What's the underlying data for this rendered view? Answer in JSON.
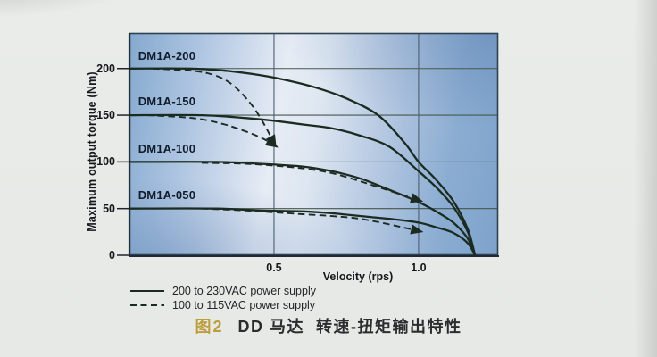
{
  "figure_caption": {
    "number": "图2",
    "number_color": "#bd9e3c",
    "title": "DD 马达  转速-扭矩输出特性"
  },
  "chart_data": {
    "type": "line",
    "title": "图2 DD 马达 转速-扭矩输出特性",
    "xlabel": "Velocity (rps)",
    "ylabel": "Maximum output torque (Nm)",
    "xlim": [
      0,
      1.275
    ],
    "ylim": [
      0,
      238
    ],
    "xticks": [
      "0.5",
      "1.0"
    ],
    "yticks": [
      "200",
      "150",
      "100",
      "50",
      "0"
    ],
    "grid": {
      "on": true,
      "x": [
        0.5,
        1.0
      ],
      "y": [
        50,
        100,
        150,
        200
      ]
    },
    "legend_position": "bottom-left",
    "legend": [
      {
        "style": "solid",
        "label": "200 to 230VAC power supply"
      },
      {
        "style": "dashed",
        "label": "100 to 115VAC power supply"
      }
    ],
    "colors": {
      "grid_h": "#46584d",
      "grid_v": "#4d5e6e",
      "border": "#2f4254",
      "axis": "#1d2933",
      "curve": "#1c2b21",
      "plot_background": [
        "#84a9ce",
        "#e7ecf5",
        "#7da2ca"
      ]
    },
    "curve_labels": [
      {
        "text": "DM1A-200",
        "x": 0.03,
        "y": 212
      },
      {
        "text": "DM1A-150",
        "x": 0.03,
        "y": 163
      },
      {
        "text": "DM1A-100",
        "x": 0.03,
        "y": 113
      },
      {
        "text": "DM1A-050",
        "x": 0.03,
        "y": 63
      }
    ],
    "series": [
      {
        "name": "DM1A-200",
        "power_supply": "200 to 230VAC",
        "line": "solid",
        "arrow_end": false,
        "points": [
          [
            0,
            200
          ],
          [
            0.2,
            200
          ],
          [
            0.32,
            198
          ],
          [
            0.45,
            193
          ],
          [
            0.55,
            187
          ],
          [
            0.65,
            179
          ],
          [
            0.75,
            168
          ],
          [
            0.86,
            150
          ],
          [
            0.95,
            121
          ],
          [
            1.0,
            100
          ],
          [
            1.06,
            81
          ],
          [
            1.12,
            58
          ],
          [
            1.17,
            28
          ],
          [
            1.195,
            0
          ]
        ]
      },
      {
        "name": "DM1A-150",
        "power_supply": "200 to 230VAC",
        "line": "solid",
        "arrow_end": false,
        "points": [
          [
            0,
            150
          ],
          [
            0.25,
            150
          ],
          [
            0.4,
            147
          ],
          [
            0.5,
            144
          ],
          [
            0.6,
            140
          ],
          [
            0.7,
            136
          ],
          [
            0.8,
            128
          ],
          [
            0.9,
            116
          ],
          [
            1.0,
            90
          ],
          [
            1.06,
            73
          ],
          [
            1.12,
            52
          ],
          [
            1.17,
            25
          ],
          [
            1.195,
            0
          ]
        ]
      },
      {
        "name": "DM1A-100",
        "power_supply": "200 to 230VAC",
        "line": "solid",
        "arrow_end": false,
        "points": [
          [
            0,
            100
          ],
          [
            0.3,
            100
          ],
          [
            0.45,
            98
          ],
          [
            0.6,
            95
          ],
          [
            0.7,
            90
          ],
          [
            0.8,
            82
          ],
          [
            0.9,
            70
          ],
          [
            1.0,
            57
          ],
          [
            1.06,
            47
          ],
          [
            1.12,
            35
          ],
          [
            1.17,
            18
          ],
          [
            1.195,
            0
          ]
        ]
      },
      {
        "name": "DM1A-050",
        "power_supply": "200 to 230VAC",
        "line": "solid",
        "arrow_end": false,
        "points": [
          [
            0,
            50
          ],
          [
            0.3,
            50
          ],
          [
            0.45,
            48
          ],
          [
            0.6,
            47
          ],
          [
            0.7,
            45
          ],
          [
            0.8,
            42
          ],
          [
            0.9,
            39
          ],
          [
            1.0,
            35
          ],
          [
            1.06,
            30
          ],
          [
            1.12,
            24
          ],
          [
            1.17,
            13
          ],
          [
            1.195,
            0
          ]
        ]
      },
      {
        "name": "DM1A-200",
        "power_supply": "100 to 115VAC",
        "line": "dashed",
        "arrow_end": true,
        "points": [
          [
            0.08,
            200
          ],
          [
            0.2,
            198
          ],
          [
            0.27,
            195
          ],
          [
            0.33,
            188
          ],
          [
            0.38,
            176
          ],
          [
            0.43,
            158
          ],
          [
            0.47,
            138
          ],
          [
            0.5,
            120
          ]
        ]
      },
      {
        "name": "DM1A-150",
        "power_supply": "100 to 115VAC",
        "line": "dashed",
        "arrow_end": true,
        "points": [
          [
            0.06,
            150
          ],
          [
            0.18,
            148
          ],
          [
            0.26,
            145
          ],
          [
            0.33,
            140
          ],
          [
            0.39,
            134
          ],
          [
            0.44,
            128
          ],
          [
            0.48,
            122
          ],
          [
            0.5,
            118
          ]
        ]
      },
      {
        "name": "DM1A-100",
        "power_supply": "100 to 115VAC",
        "line": "dashed",
        "arrow_end": true,
        "points": [
          [
            0.25,
            99
          ],
          [
            0.4,
            98
          ],
          [
            0.5,
            96
          ],
          [
            0.6,
            93
          ],
          [
            0.7,
            88
          ],
          [
            0.8,
            79
          ],
          [
            0.9,
            69
          ],
          [
            0.97,
            62
          ],
          [
            1.0,
            59
          ]
        ]
      },
      {
        "name": "DM1A-050",
        "power_supply": "100 to 115VAC",
        "line": "dashed",
        "arrow_end": true,
        "points": [
          [
            0.25,
            50
          ],
          [
            0.4,
            48
          ],
          [
            0.5,
            46
          ],
          [
            0.6,
            44
          ],
          [
            0.7,
            42
          ],
          [
            0.8,
            39
          ],
          [
            0.9,
            33
          ],
          [
            1.0,
            26
          ]
        ]
      }
    ]
  }
}
